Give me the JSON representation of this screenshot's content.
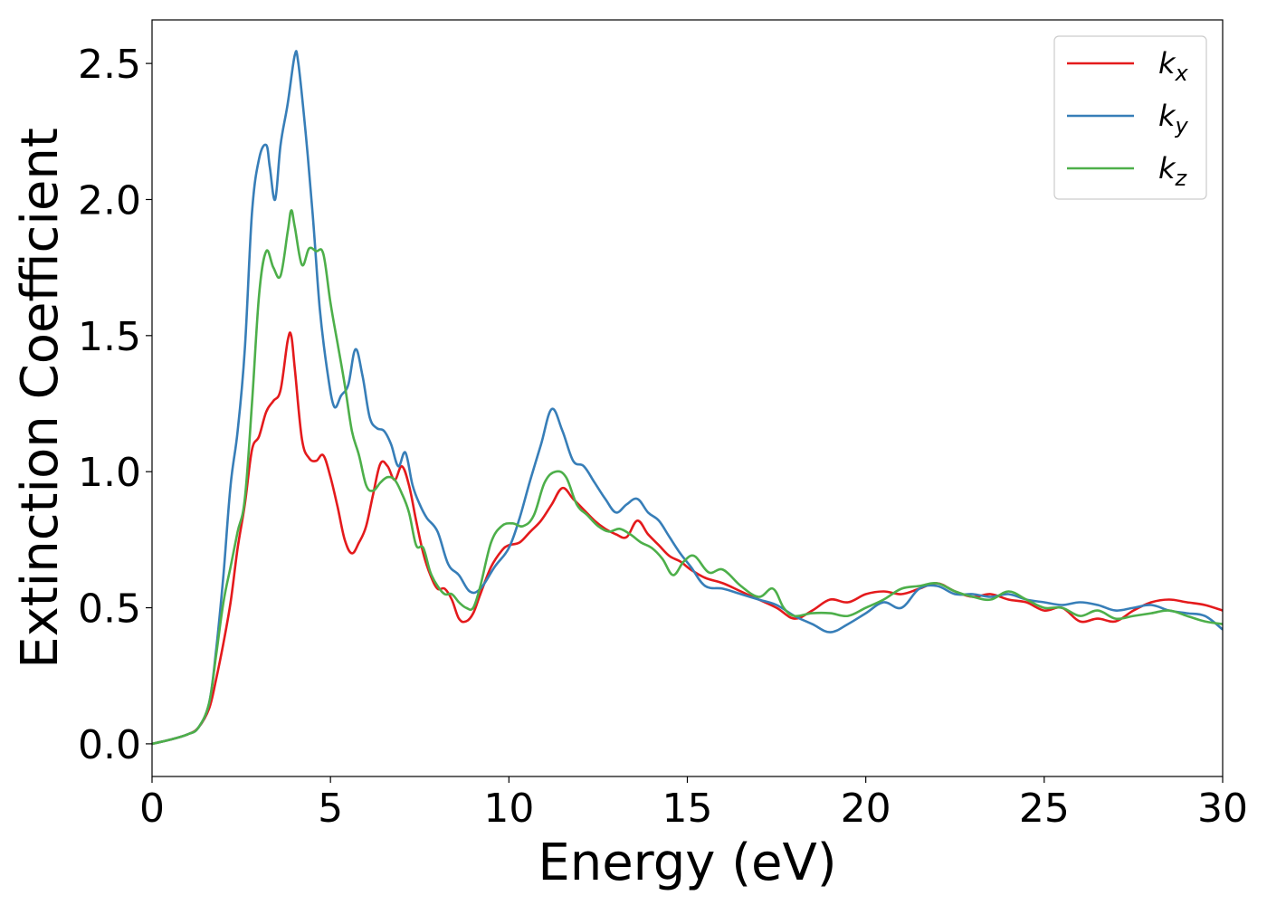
{
  "chart_data": {
    "type": "line",
    "title": "",
    "xlabel": "Energy (eV)",
    "ylabel": "Extinction Coefficient",
    "xlim": [
      0,
      30
    ],
    "ylim": [
      -0.12,
      2.66
    ],
    "xticks": [
      0,
      5,
      10,
      15,
      20,
      25,
      30
    ],
    "xtick_labels": [
      "0",
      "5",
      "10",
      "15",
      "20",
      "25",
      "30"
    ],
    "yticks": [
      0.0,
      0.5,
      1.0,
      1.5,
      2.0,
      2.5
    ],
    "ytick_labels": [
      "0.0",
      "0.5",
      "1.0",
      "1.5",
      "2.0",
      "2.5"
    ],
    "grid": false,
    "legend_position": "top-right",
    "series": [
      {
        "name": "k_x",
        "base": "k",
        "sub": "x",
        "color": "#e41a1c",
        "x": [
          0,
          0.5,
          1.0,
          1.3,
          1.6,
          1.8,
          2.0,
          2.2,
          2.4,
          2.6,
          2.8,
          3.0,
          3.2,
          3.4,
          3.6,
          3.8,
          3.9,
          4.0,
          4.2,
          4.4,
          4.6,
          4.8,
          5.0,
          5.2,
          5.4,
          5.6,
          5.8,
          6.0,
          6.2,
          6.4,
          6.6,
          6.8,
          7.0,
          7.2,
          7.4,
          7.6,
          7.8,
          8.0,
          8.2,
          8.4,
          8.6,
          8.8,
          9.0,
          9.2,
          9.5,
          9.8,
          10.0,
          10.3,
          10.6,
          10.9,
          11.2,
          11.5,
          11.8,
          12.1,
          12.4,
          12.7,
          13.0,
          13.3,
          13.6,
          13.9,
          14.2,
          14.5,
          14.8,
          15.1,
          15.5,
          16.0,
          16.5,
          17.0,
          17.5,
          18.0,
          18.5,
          19.0,
          19.5,
          20.0,
          20.5,
          21.0,
          21.5,
          22.0,
          22.5,
          23.0,
          23.5,
          24.0,
          24.5,
          25.0,
          25.5,
          26.0,
          26.5,
          27.0,
          27.5,
          28.0,
          28.5,
          29.0,
          29.5,
          30.0
        ],
        "y": [
          0.0,
          0.015,
          0.035,
          0.06,
          0.13,
          0.24,
          0.37,
          0.52,
          0.72,
          0.88,
          1.08,
          1.13,
          1.22,
          1.26,
          1.3,
          1.48,
          1.5,
          1.38,
          1.12,
          1.05,
          1.04,
          1.06,
          0.98,
          0.87,
          0.75,
          0.7,
          0.74,
          0.8,
          0.92,
          1.03,
          1.02,
          0.97,
          1.02,
          0.95,
          0.82,
          0.7,
          0.62,
          0.57,
          0.57,
          0.53,
          0.46,
          0.45,
          0.48,
          0.55,
          0.65,
          0.71,
          0.73,
          0.74,
          0.78,
          0.82,
          0.88,
          0.94,
          0.9,
          0.86,
          0.82,
          0.79,
          0.77,
          0.76,
          0.82,
          0.77,
          0.73,
          0.69,
          0.67,
          0.64,
          0.61,
          0.59,
          0.56,
          0.53,
          0.5,
          0.46,
          0.49,
          0.53,
          0.52,
          0.55,
          0.56,
          0.55,
          0.57,
          0.59,
          0.56,
          0.54,
          0.55,
          0.53,
          0.52,
          0.49,
          0.5,
          0.45,
          0.46,
          0.45,
          0.49,
          0.52,
          0.53,
          0.52,
          0.51,
          0.49
        ]
      },
      {
        "name": "k_y",
        "base": "k",
        "sub": "y",
        "color": "#377eb8",
        "x": [
          0,
          0.5,
          1.0,
          1.3,
          1.6,
          1.8,
          2.0,
          2.2,
          2.4,
          2.6,
          2.8,
          3.0,
          3.2,
          3.3,
          3.45,
          3.6,
          3.8,
          4.0,
          4.1,
          4.3,
          4.5,
          4.7,
          4.9,
          5.1,
          5.3,
          5.5,
          5.7,
          5.9,
          6.1,
          6.3,
          6.5,
          6.7,
          6.9,
          7.1,
          7.3,
          7.5,
          7.7,
          8.0,
          8.3,
          8.6,
          8.9,
          9.2,
          9.6,
          10.0,
          10.3,
          10.6,
          10.9,
          11.2,
          11.5,
          11.8,
          12.1,
          12.4,
          12.7,
          13.0,
          13.3,
          13.6,
          13.9,
          14.2,
          14.5,
          14.8,
          15.1,
          15.5,
          16.0,
          16.5,
          17.0,
          17.5,
          18.0,
          18.5,
          19.0,
          19.5,
          20.0,
          20.5,
          21.0,
          21.5,
          22.0,
          22.5,
          23.0,
          23.5,
          24.0,
          24.5,
          25.0,
          25.5,
          26.0,
          26.5,
          27.0,
          27.5,
          28.0,
          28.5,
          29.0,
          29.5,
          30.0
        ],
        "y": [
          0.0,
          0.015,
          0.035,
          0.06,
          0.15,
          0.35,
          0.62,
          0.95,
          1.15,
          1.45,
          1.95,
          2.15,
          2.2,
          2.12,
          2.0,
          2.2,
          2.35,
          2.53,
          2.5,
          2.25,
          1.95,
          1.6,
          1.38,
          1.24,
          1.28,
          1.32,
          1.45,
          1.35,
          1.2,
          1.16,
          1.15,
          1.1,
          1.02,
          1.07,
          0.95,
          0.88,
          0.83,
          0.78,
          0.66,
          0.62,
          0.56,
          0.57,
          0.65,
          0.72,
          0.83,
          0.97,
          1.1,
          1.23,
          1.15,
          1.04,
          1.02,
          0.96,
          0.9,
          0.85,
          0.88,
          0.9,
          0.85,
          0.82,
          0.76,
          0.7,
          0.65,
          0.58,
          0.57,
          0.55,
          0.53,
          0.51,
          0.47,
          0.44,
          0.41,
          0.44,
          0.48,
          0.52,
          0.5,
          0.57,
          0.58,
          0.55,
          0.55,
          0.54,
          0.55,
          0.53,
          0.52,
          0.51,
          0.52,
          0.51,
          0.49,
          0.5,
          0.51,
          0.49,
          0.48,
          0.47,
          0.42
        ]
      },
      {
        "name": "k_z",
        "base": "k",
        "sub": "z",
        "color": "#4daf4a",
        "x": [
          0,
          0.5,
          1.0,
          1.3,
          1.6,
          1.8,
          2.0,
          2.2,
          2.4,
          2.6,
          2.8,
          3.0,
          3.2,
          3.4,
          3.6,
          3.8,
          3.9,
          4.0,
          4.2,
          4.4,
          4.6,
          4.8,
          5.0,
          5.2,
          5.4,
          5.6,
          5.8,
          6.0,
          6.2,
          6.4,
          6.6,
          6.8,
          7.0,
          7.2,
          7.4,
          7.6,
          7.8,
          8.0,
          8.2,
          8.4,
          8.6,
          8.8,
          9.0,
          9.2,
          9.5,
          9.8,
          10.1,
          10.4,
          10.7,
          11.0,
          11.3,
          11.6,
          11.9,
          12.2,
          12.5,
          12.8,
          13.1,
          13.4,
          13.7,
          14.0,
          14.3,
          14.6,
          14.9,
          15.2,
          15.6,
          16.0,
          16.5,
          17.0,
          17.4,
          17.7,
          18.0,
          18.5,
          19.0,
          19.5,
          20.0,
          20.5,
          21.0,
          21.5,
          22.0,
          22.5,
          23.0,
          23.5,
          24.0,
          24.5,
          25.0,
          25.5,
          26.0,
          26.5,
          27.0,
          27.5,
          28.0,
          28.5,
          29.0,
          29.5,
          30.0
        ],
        "y": [
          0.0,
          0.015,
          0.035,
          0.06,
          0.15,
          0.33,
          0.52,
          0.65,
          0.78,
          0.9,
          1.25,
          1.65,
          1.81,
          1.75,
          1.72,
          1.88,
          1.96,
          1.9,
          1.76,
          1.82,
          1.81,
          1.8,
          1.62,
          1.47,
          1.32,
          1.15,
          1.06,
          0.95,
          0.93,
          0.96,
          0.98,
          0.97,
          0.92,
          0.85,
          0.73,
          0.72,
          0.63,
          0.58,
          0.55,
          0.55,
          0.52,
          0.5,
          0.5,
          0.58,
          0.74,
          0.8,
          0.81,
          0.8,
          0.84,
          0.96,
          1.0,
          0.98,
          0.88,
          0.84,
          0.8,
          0.78,
          0.79,
          0.77,
          0.74,
          0.72,
          0.68,
          0.62,
          0.67,
          0.69,
          0.63,
          0.64,
          0.58,
          0.54,
          0.57,
          0.5,
          0.47,
          0.48,
          0.48,
          0.47,
          0.5,
          0.53,
          0.57,
          0.58,
          0.59,
          0.56,
          0.54,
          0.53,
          0.56,
          0.53,
          0.5,
          0.5,
          0.47,
          0.49,
          0.46,
          0.47,
          0.48,
          0.49,
          0.47,
          0.45,
          0.44
        ]
      }
    ]
  }
}
